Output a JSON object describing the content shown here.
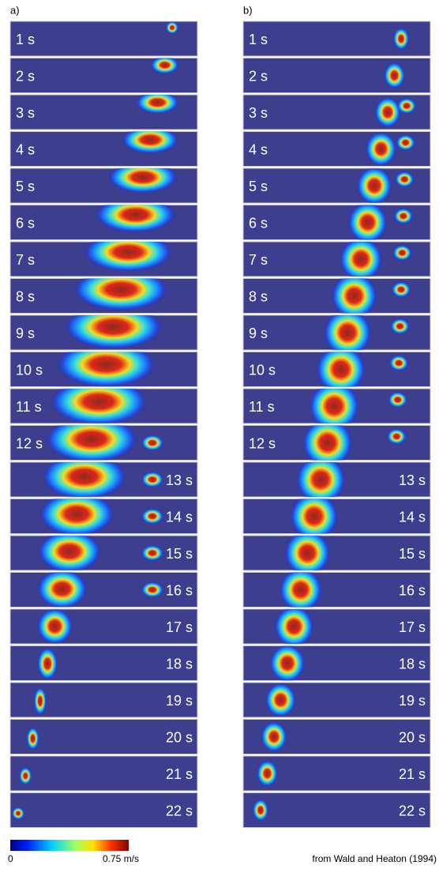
{
  "figure": {
    "panels": [
      {
        "label": "a)",
        "frames": [
          "1 s",
          "2 s",
          "3 s",
          "4 s",
          "5 s",
          "6 s",
          "7 s",
          "8 s",
          "9 s",
          "10 s",
          "11 s",
          "12 s",
          "13 s",
          "14 s",
          "15 s",
          "16 s",
          "17 s",
          "18 s",
          "19 s",
          "20 s",
          "21 s",
          "22 s"
        ]
      },
      {
        "label": "b)",
        "frames": [
          "1 s",
          "2 s",
          "3 s",
          "4 s",
          "5 s",
          "6 s",
          "7 s",
          "8 s",
          "9 s",
          "10 s",
          "11 s",
          "12 s",
          "13 s",
          "14 s",
          "15 s",
          "16 s",
          "17 s",
          "18 s",
          "19 s",
          "20 s",
          "21 s",
          "22 s"
        ]
      }
    ],
    "colorbar": {
      "min_label": "0",
      "max_label": "0.75 m/s"
    },
    "credit": "from Wald and Heaton (1994)"
  }
}
